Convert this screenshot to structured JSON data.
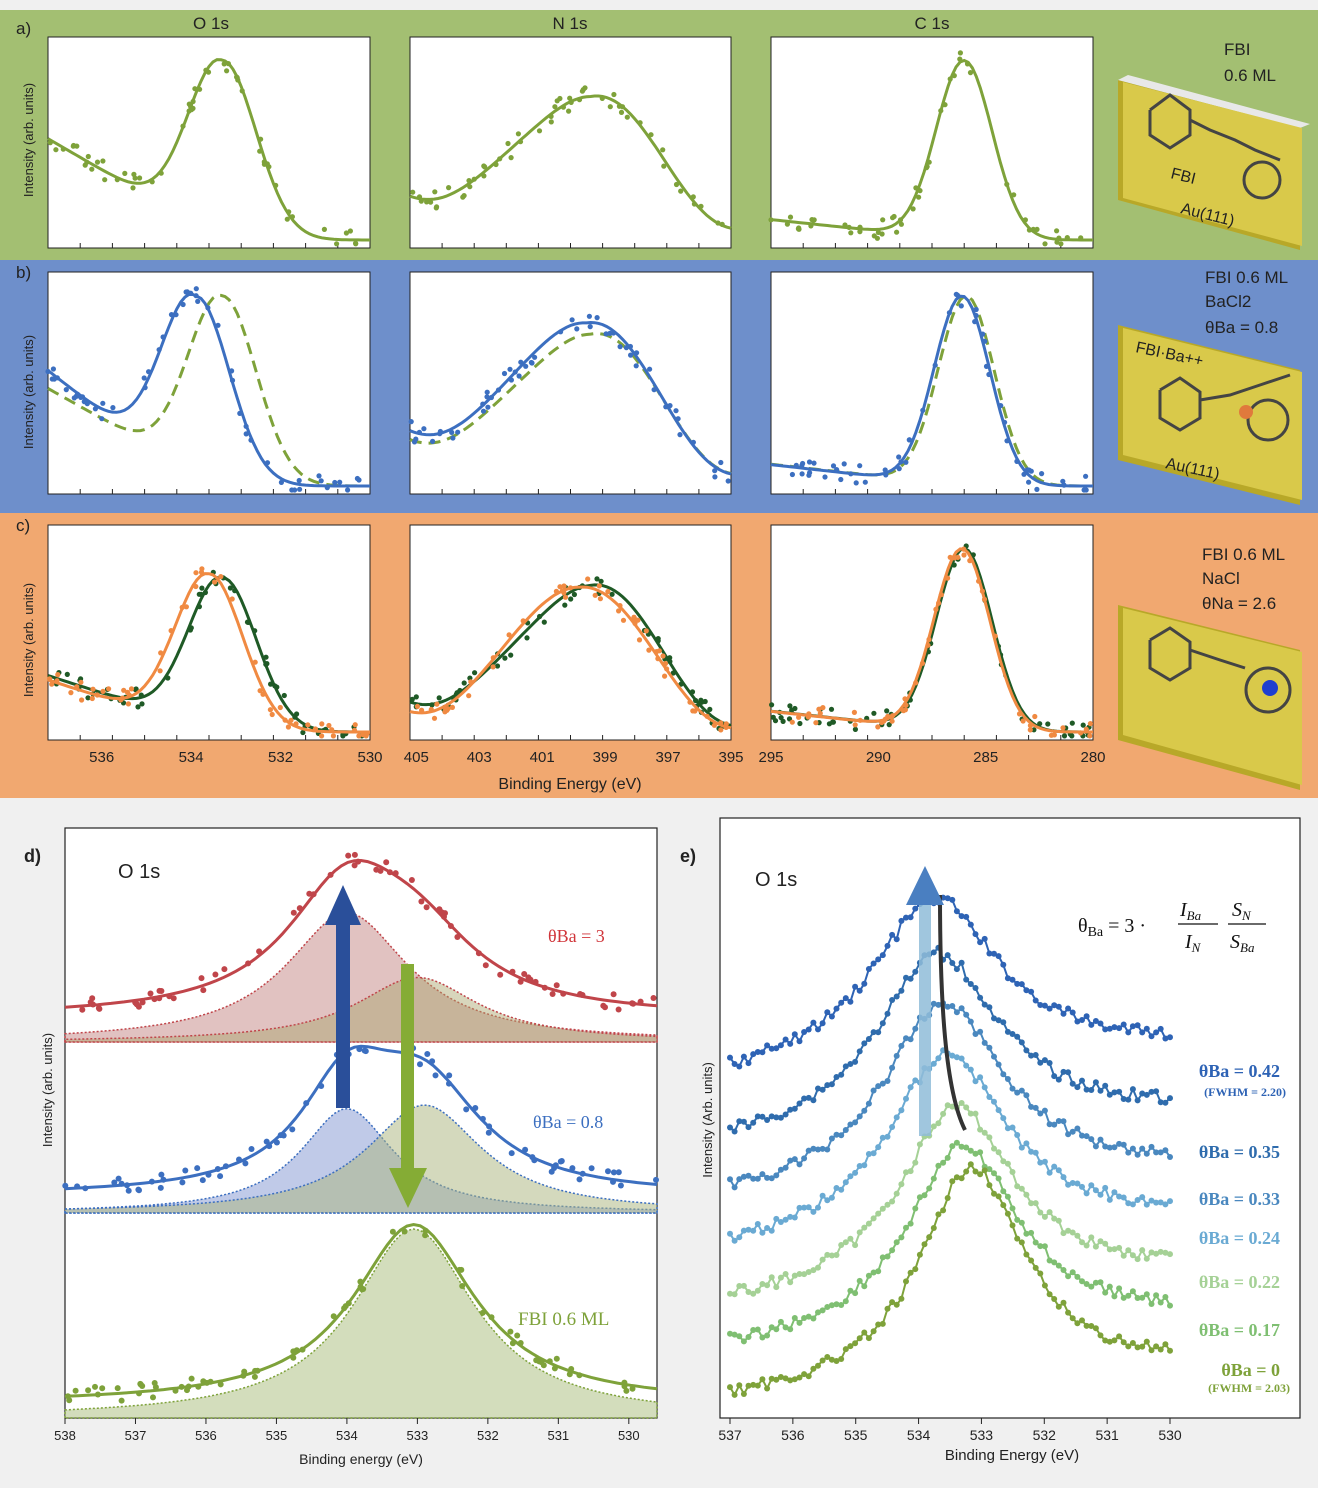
{
  "colors": {
    "band_a": "#a3bf72",
    "band_b": "#6e8fcb",
    "band_c": "#f1a870",
    "fbi_green": "#7ea23a",
    "ba_blue": "#3c6fc0",
    "na_orange": "#f08a42",
    "dark_green": "#1f5a26",
    "red": "#c0454a",
    "gold": "#d9c53a"
  },
  "top": {
    "rows": [
      {
        "tag": "a)",
        "ylabel": "Intensity (arb. units)",
        "info": [
          "FBI",
          "0.6 ML"
        ],
        "mol_label": "FBI",
        "surface": "Au(111)"
      },
      {
        "tag": "b)",
        "ylabel": "Intensity (arb. units)",
        "info": [
          "FBI 0.6 ML",
          "BaCl2",
          "θBa = 0.8"
        ],
        "mol_label": "FBI·Ba++",
        "surface": "Au(111)"
      },
      {
        "tag": "c)",
        "ylabel": "Intensity (arb. units)",
        "info": [
          "FBI 0.6 ML",
          "NaCl",
          "θNa = 2.6"
        ]
      }
    ],
    "columns": [
      {
        "title": "O 1s",
        "ticks": [
          "536",
          "534",
          "532",
          "530"
        ]
      },
      {
        "title": "N 1s",
        "ticks": [
          "405",
          "403",
          "401",
          "399",
          "397",
          "395"
        ]
      },
      {
        "title": "C 1s",
        "ticks": [
          "295",
          "290",
          "285",
          "280"
        ]
      }
    ],
    "xlabel": "Binding Energy (eV)"
  },
  "chart_data": [
    {
      "type": "line",
      "panel": "a-c) XPS core levels",
      "xlabel": "Binding Energy (eV)",
      "ylabel": "Intensity (arb. units)",
      "columns": [
        {
          "title": "O 1s",
          "xlim": [
            537.2,
            530
          ],
          "ticks": [
            536,
            534,
            532,
            530
          ],
          "peak_x": 533.3
        },
        {
          "title": "N 1s",
          "xlim": [
            405.2,
            395
          ],
          "ticks": [
            405,
            403,
            401,
            399,
            397,
            395
          ],
          "peak_x": 399.5
        },
        {
          "title": "C 1s",
          "xlim": [
            295,
            280
          ],
          "ticks": [
            295,
            290,
            285,
            280
          ],
          "peak_x": 286.0
        }
      ],
      "series": [
        {
          "row": "a",
          "name": "FBI 0.6 ML",
          "style": "solid+dots"
        },
        {
          "row": "b",
          "name": "FBI 0.6 ML",
          "style": "dashed"
        },
        {
          "row": "b",
          "name": "θBa = 0.8",
          "style": "solid+dots"
        },
        {
          "row": "c",
          "name": "θNa = 2.6",
          "style": "solid+dots"
        }
      ]
    },
    {
      "type": "area",
      "panel": "d)",
      "title": "O 1s",
      "xlabel": "Binding energy (eV)",
      "ylabel": "Intensity (arb. units)",
      "xlim": [
        538,
        529.6
      ],
      "xticks": [
        538,
        537,
        536,
        535,
        534,
        533,
        532,
        531,
        530
      ],
      "series": [
        {
          "name": "θBa = 3",
          "components_x": [
            534.0,
            533.0
          ]
        },
        {
          "name": "θBa = 0.8",
          "components_x": [
            534.0,
            532.9
          ]
        },
        {
          "name": "FBI 0.6 ML",
          "components_x": [
            533.05
          ]
        }
      ]
    },
    {
      "type": "line",
      "panel": "e)",
      "title": "O 1s",
      "xlabel": "Binding Energy (eV)",
      "ylabel": "Intensity (Arb. units)",
      "xlim": [
        537,
        530
      ],
      "xticks": [
        537,
        536,
        535,
        534,
        533,
        532,
        531,
        530
      ],
      "equation": "θBa = 3 · (IBa/IN)(SN/SBa)",
      "series": [
        {
          "name": "θBa = 0.42",
          "note": "(FWHM = 2.20)",
          "color": "#2e63b5"
        },
        {
          "name": "θBa = 0.35",
          "color": "#2f6cad"
        },
        {
          "name": "θBa = 0.33",
          "color": "#4a88bf"
        },
        {
          "name": "θBa = 0.24",
          "color": "#6aaad3"
        },
        {
          "name": "θBa = 0.22",
          "color": "#a5d196"
        },
        {
          "name": "θBa = 0.17",
          "color": "#7fbf72"
        },
        {
          "name": "θBa = 0",
          "note": "(FWHM = 2.03)",
          "color": "#7ea23a"
        }
      ]
    }
  ],
  "panel_d": {
    "tag": "d)",
    "title": "O 1s",
    "ylabel": "Intensity (arb. units)",
    "xlabel": "Binding energy (eV)",
    "ticks": [
      "538",
      "537",
      "536",
      "535",
      "534",
      "533",
      "532",
      "531",
      "530"
    ],
    "labels": [
      "θBa = 3",
      "θBa = 0.8",
      "FBI 0.6 ML"
    ]
  },
  "panel_e": {
    "tag": "e)",
    "title": "O 1s",
    "ylabel": "Intensity (Arb. units)",
    "xlabel": "Binding Energy (eV)",
    "ticks": [
      "537",
      "536",
      "535",
      "534",
      "533",
      "532",
      "531",
      "530"
    ],
    "labels": [
      "θBa = 0.42",
      "θBa = 0.35",
      "θBa = 0.33",
      "θBa = 0.24",
      "θBa = 0.22",
      "θBa = 0.17",
      "θBa = 0"
    ],
    "fwhm": [
      "(FWHM = 2.20)",
      "(FWHM = 2.03)"
    ]
  }
}
